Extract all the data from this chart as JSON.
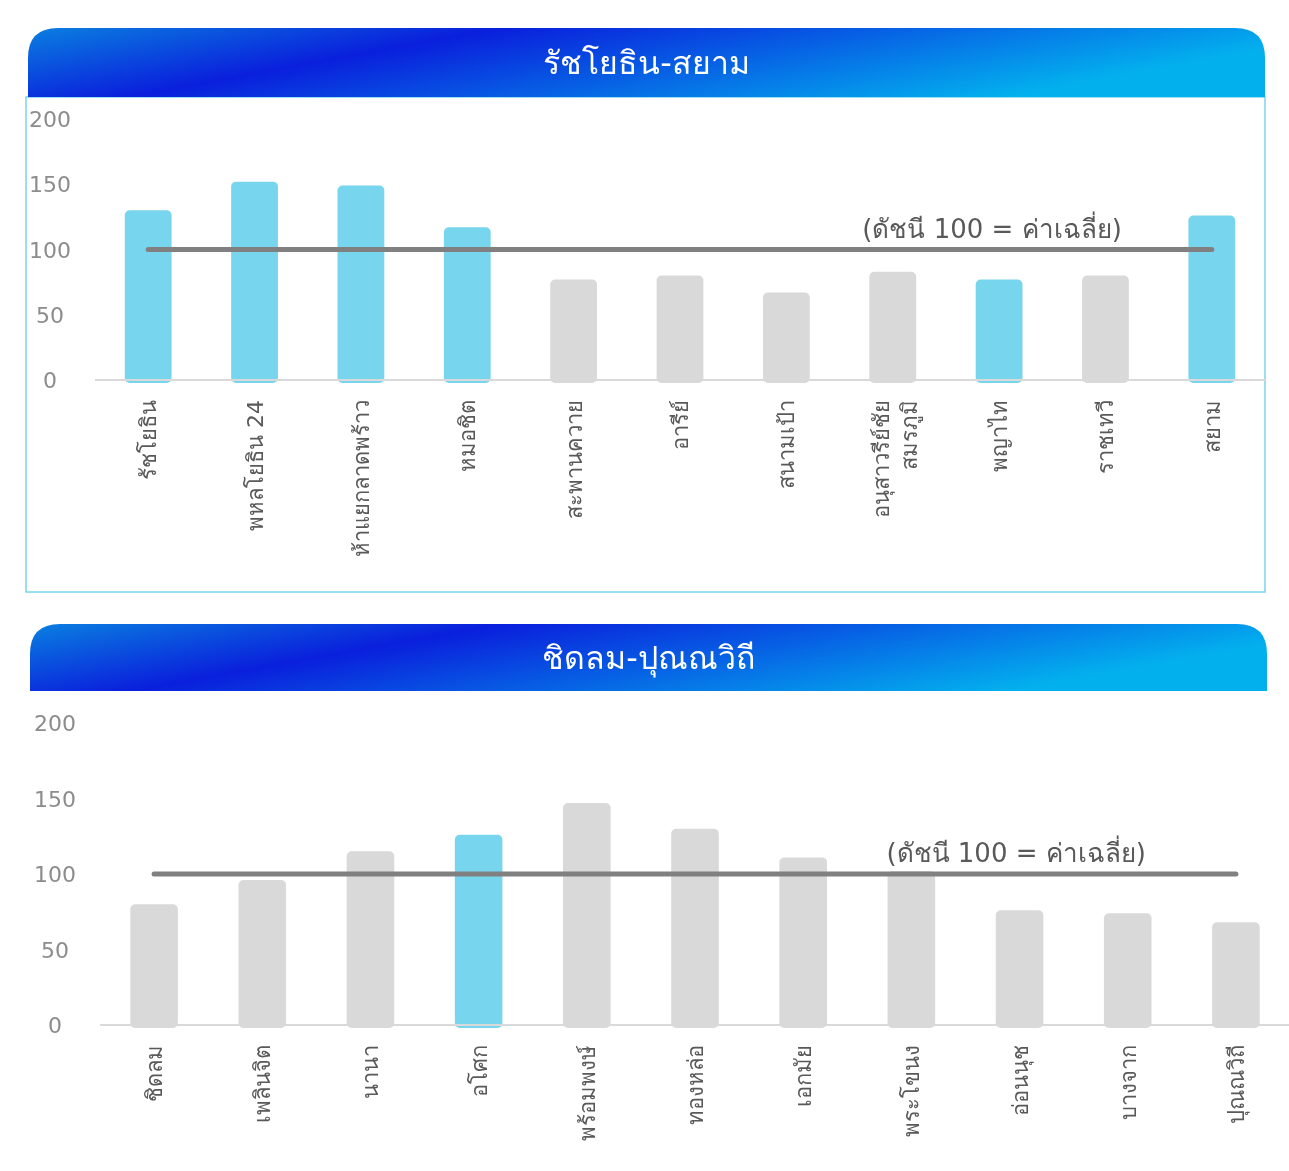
{
  "chart_data": [
    {
      "type": "bar",
      "title": "รัชโยธิน-สยาม",
      "categories": [
        "รัชโยธิน",
        "พหลโยธิน 24",
        "ห้าแยกลาดพร้าว",
        "หมอชิต",
        "สะพานควาย",
        "อารีย์",
        "สนามเป้า",
        "อนุสาวรีย์ชัย สมรภูมิ",
        "พญาไท",
        "ราชเทวี",
        "สยาม"
      ],
      "values": [
        130,
        152,
        149,
        117,
        77,
        80,
        67,
        83,
        77,
        80,
        126
      ],
      "colors": [
        "#78d5ee",
        "#78d5ee",
        "#78d5ee",
        "#78d5ee",
        "#d9d9d9",
        "#d9d9d9",
        "#d9d9d9",
        "#d9d9d9",
        "#78d5ee",
        "#d9d9d9",
        "#78d5ee"
      ],
      "ylim": [
        0,
        200
      ],
      "yticks": [
        0,
        50,
        100,
        150,
        200
      ],
      "ref_lines": [
        {
          "axis": "y",
          "value": 100,
          "label": "(ดัชนี 100 = ค่าเฉลี่ย)",
          "color": "#808080"
        }
      ]
    },
    {
      "type": "bar",
      "title": "ชิดลม-ปุณณวิถี",
      "categories": [
        "ชิดลม",
        "เพลินจิต",
        "นานา",
        "อโศก",
        "พร้อมพงษ์",
        "ทองหล่อ",
        "เอกมัย",
        "พระโขนง",
        "อ่อนนุช",
        "บางจาก",
        "ปุณณวิถี"
      ],
      "values": [
        80,
        96,
        115,
        126,
        147,
        130,
        111,
        102,
        76,
        74,
        68
      ],
      "colors": [
        "#d9d9d9",
        "#d9d9d9",
        "#d9d9d9",
        "#78d5ee",
        "#d9d9d9",
        "#d9d9d9",
        "#d9d9d9",
        "#d9d9d9",
        "#d9d9d9",
        "#d9d9d9",
        "#d9d9d9"
      ],
      "ylim": [
        0,
        200
      ],
      "yticks": [
        0,
        50,
        100,
        150,
        200
      ],
      "ref_lines": [
        {
          "axis": "y",
          "value": 100,
          "label": "(ดัชนี 100 = ค่าเฉลี่ย)",
          "color": "#808080"
        }
      ]
    }
  ]
}
